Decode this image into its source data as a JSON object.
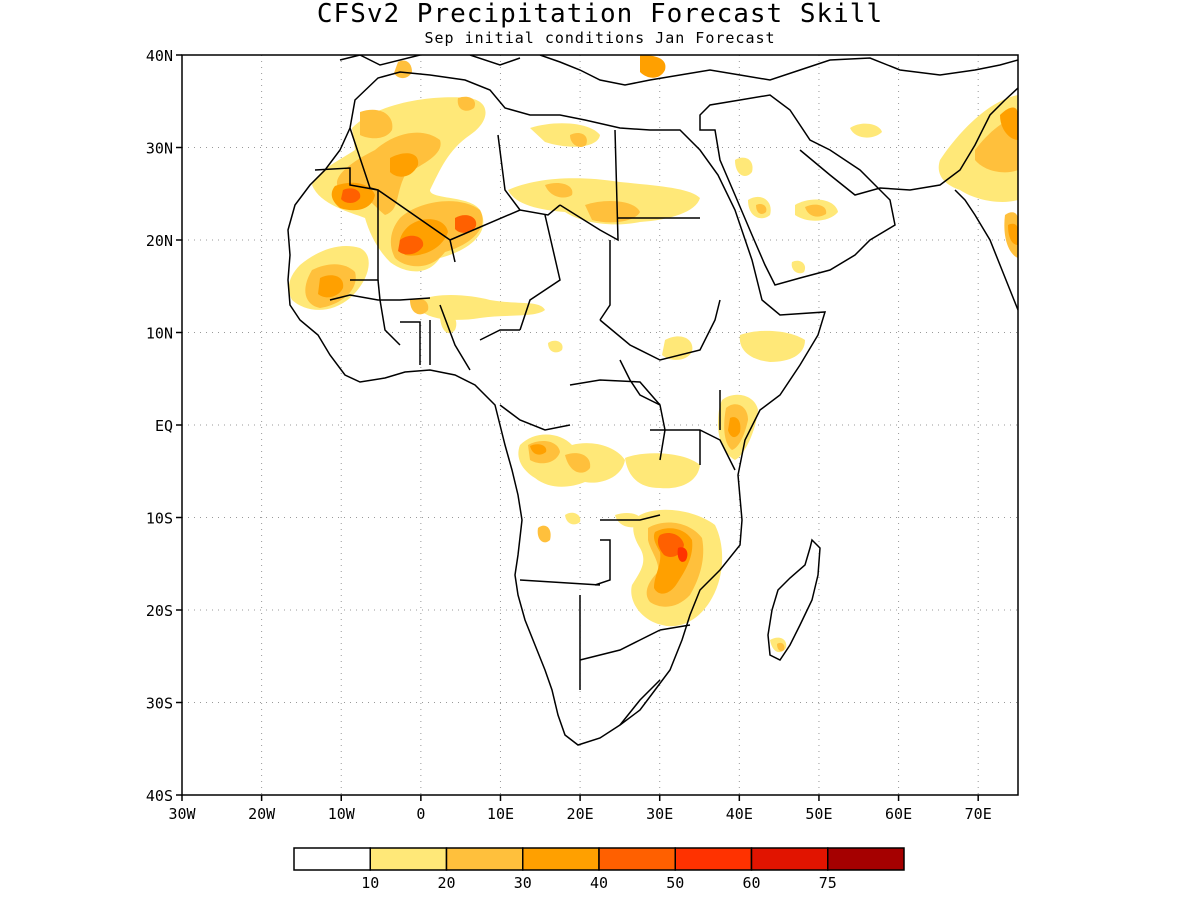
{
  "title": "CFSv2 Precipitation Forecast Skill",
  "subtitle": "Sep initial conditions  Jan Forecast",
  "map": {
    "lon_range": [
      -30,
      75
    ],
    "lat_range": [
      -40,
      40
    ],
    "lat_ticks": [
      "40N",
      "30N",
      "20N",
      "10N",
      "EQ",
      "10S",
      "20S",
      "30S",
      "40S"
    ],
    "lon_ticks": [
      "30W",
      "20W",
      "10W",
      "0",
      "10E",
      "20E",
      "30E",
      "40E",
      "50E",
      "60E",
      "70E"
    ],
    "grid": true,
    "grid_style": "dotted"
  },
  "legend": {
    "labels": [
      "10",
      "20",
      "30",
      "40",
      "50",
      "60",
      "75"
    ],
    "colors": [
      "#ffffff",
      "#ffe878",
      "#ffc03c",
      "#ffa000",
      "#ff6000",
      "#ff3200",
      "#e11400",
      "#a50000"
    ]
  },
  "regions": [
    {
      "name": "morocco-algeria",
      "level": 2,
      "lon": -6,
      "lat": 31.5
    },
    {
      "name": "western-sahara",
      "level": 4,
      "lon": -8.5,
      "lat": 24.5
    },
    {
      "name": "mali-algeria",
      "level": 5,
      "lon": -1.5,
      "lat": 18.8
    },
    {
      "name": "senegal-mali",
      "level": 3,
      "lon": -12,
      "lat": 15
    },
    {
      "name": "niger-algeria",
      "level": 3,
      "lon": 4.5,
      "lat": 21.5
    },
    {
      "name": "libya-north",
      "level": 2,
      "lon": 18,
      "lat": 28.5
    },
    {
      "name": "libya-chad-egypt",
      "level": 3,
      "lon": 25,
      "lat": 23
    },
    {
      "name": "arabia-north",
      "level": 1,
      "lon": 42.5,
      "lat": 26
    },
    {
      "name": "arabia-south",
      "level": 2,
      "lon": 48,
      "lat": 22.5
    },
    {
      "name": "india-west",
      "level": 2,
      "lon": 72.5,
      "lat": 28
    },
    {
      "name": "india-coast",
      "level": 3,
      "lon": 74,
      "lat": 20.5
    },
    {
      "name": "ethiopia",
      "level": 1,
      "lon": 43,
      "lat": 9
    },
    {
      "name": "sudan-south",
      "level": 1,
      "lon": 32,
      "lat": 8.5
    },
    {
      "name": "kenya-somalia",
      "level": 3,
      "lon": 40,
      "lat": 0
    },
    {
      "name": "congo-angola",
      "level": 3,
      "lon": 15,
      "lat": -3.5
    },
    {
      "name": "congo-east",
      "level": 1,
      "lon": 24,
      "lat": -4.5
    },
    {
      "name": "tanzania",
      "level": 1,
      "lon": 32,
      "lat": -4
    },
    {
      "name": "zambia-malawi",
      "level": 5,
      "lon": 32,
      "lat": -13.5
    },
    {
      "name": "mozambique",
      "level": 3,
      "lon": 32.5,
      "lat": -18
    },
    {
      "name": "angola",
      "level": 1,
      "lon": 15.5,
      "lat": -12
    },
    {
      "name": "madagascar-south",
      "level": 1,
      "lon": 46,
      "lat": -24.5
    }
  ]
}
